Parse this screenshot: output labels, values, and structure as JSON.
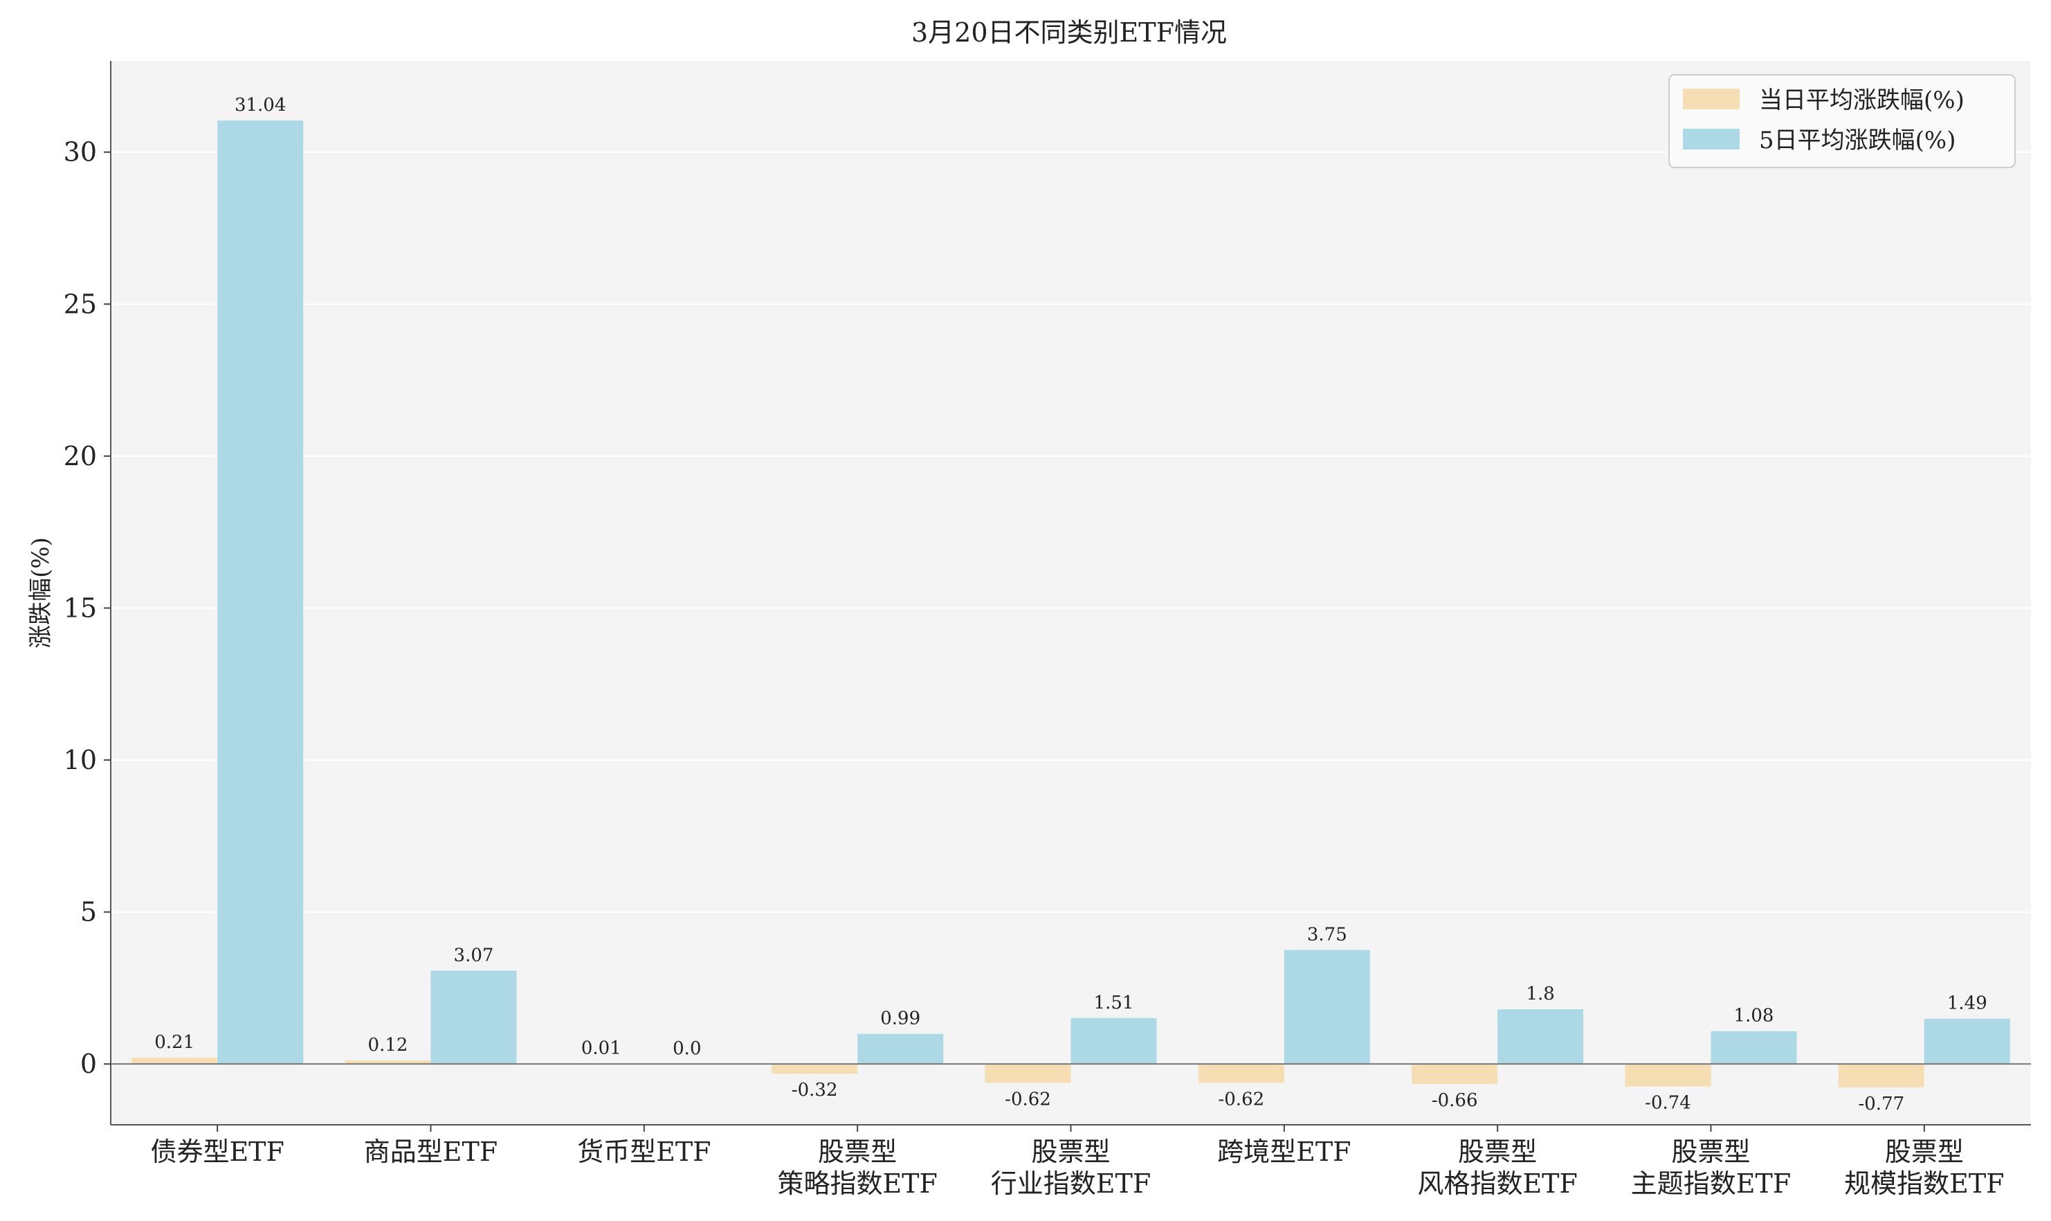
{
  "chart_data": {
    "type": "bar",
    "title": "3月20日不同类别ETF情况",
    "ylabel": "涨跌幅(%)",
    "xlabel": "",
    "ylim": [
      -2,
      33
    ],
    "yticks": [
      0,
      5,
      10,
      15,
      20,
      25,
      30
    ],
    "grid": "horizontal",
    "legend_position": "top-right",
    "categories": [
      "债券型ETF",
      "商品型ETF",
      "货币型ETF",
      "股票型\n策略指数ETF",
      "股票型\n行业指数ETF",
      "跨境型ETF",
      "股票型\n风格指数ETF",
      "股票型\n主题指数ETF",
      "股票型\n规模指数ETF"
    ],
    "series": [
      {
        "name": "当日平均涨跌幅(%)",
        "color": "#f5deb3",
        "values": [
          0.21,
          0.12,
          0.01,
          -0.32,
          -0.62,
          -0.62,
          -0.66,
          -0.74,
          -0.77
        ],
        "labels": [
          "0.21",
          "0.12",
          "0.01",
          "-0.32",
          "-0.62",
          "-0.62",
          "-0.66",
          "-0.74",
          "-0.77"
        ]
      },
      {
        "name": "5日平均涨跌幅(%)",
        "color": "#add8e6",
        "values": [
          31.04,
          3.07,
          0.0,
          0.99,
          1.51,
          3.75,
          1.8,
          1.08,
          1.49
        ],
        "labels": [
          "31.04",
          "3.07",
          "0.0",
          "0.99",
          "1.51",
          "3.75",
          "1.8",
          "1.08",
          "1.49"
        ]
      }
    ]
  }
}
